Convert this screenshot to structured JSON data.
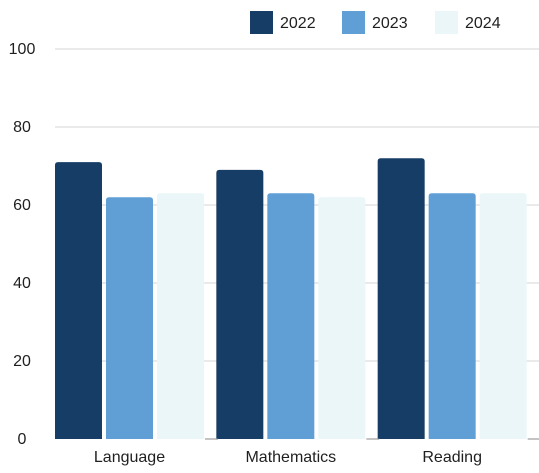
{
  "chart_data": {
    "type": "bar",
    "title": "",
    "xlabel": "",
    "ylabel": "",
    "categories": [
      "Language",
      "Mathematics",
      "Reading"
    ],
    "series": [
      {
        "name": "2022",
        "values": [
          71,
          69,
          72
        ],
        "color": "#163d65"
      },
      {
        "name": "2023",
        "values": [
          62,
          63,
          63
        ],
        "color": "#5f9fd6"
      },
      {
        "name": "2024",
        "values": [
          63,
          62,
          63
        ],
        "color": "#eaf6f7"
      }
    ],
    "ylim": [
      0,
      100
    ],
    "yticks": [
      0,
      20,
      40,
      60,
      80,
      100
    ],
    "grid": true,
    "legend_position": "top-right"
  }
}
